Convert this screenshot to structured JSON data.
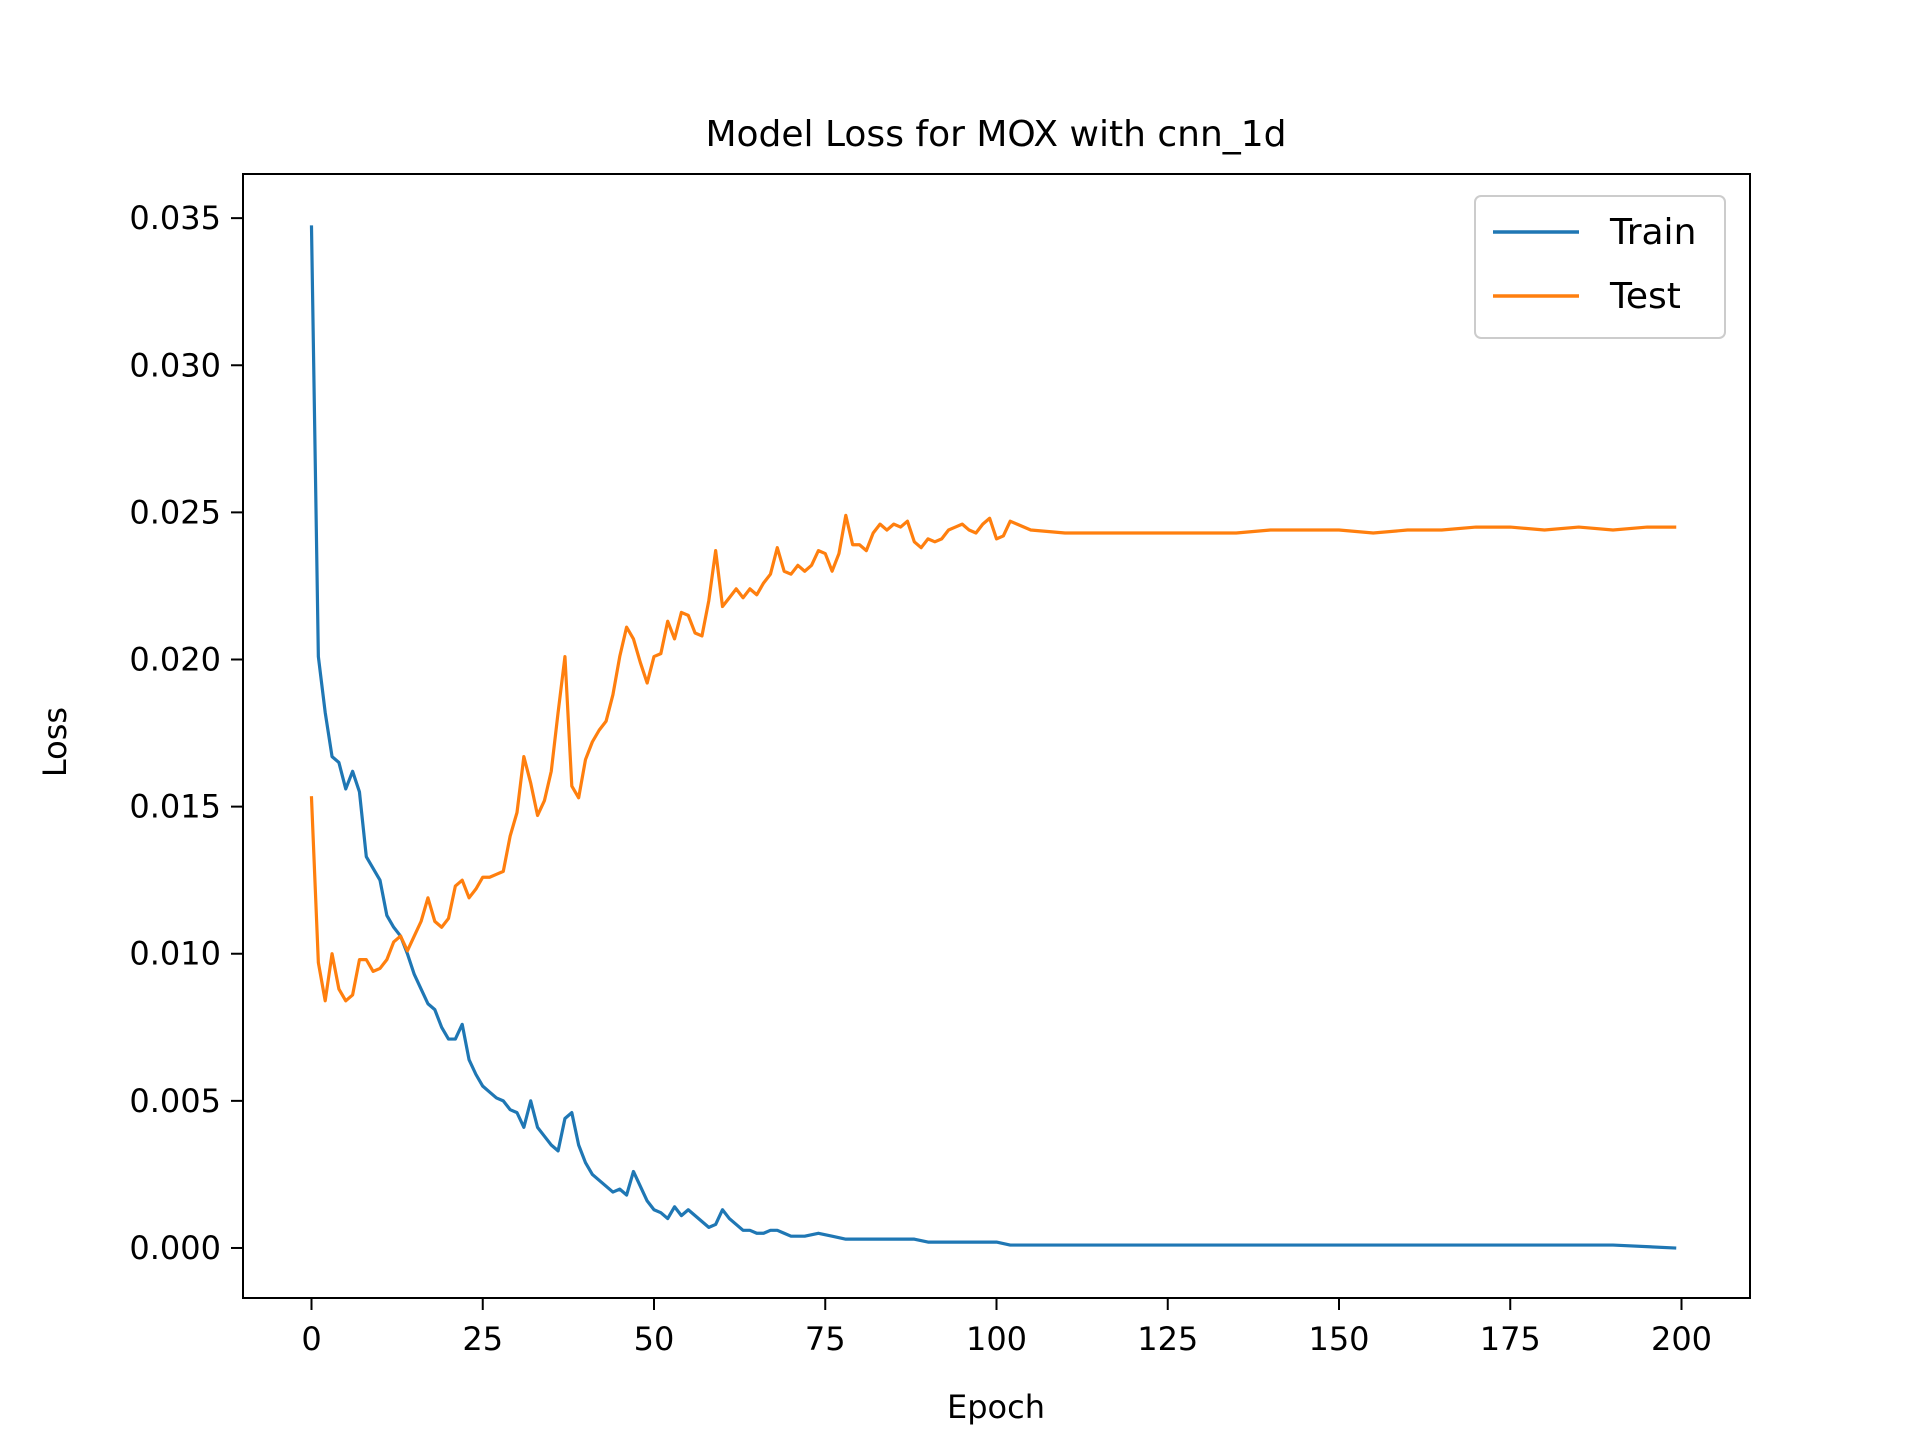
{
  "chart_data": {
    "type": "line",
    "title": "Model Loss for MOX with cnn_1d",
    "xlabel": "Epoch",
    "ylabel": "Loss",
    "xlim": [
      -10,
      210
    ],
    "ylim": [
      -0.0017,
      0.0365
    ],
    "xticks": [
      0,
      25,
      50,
      75,
      100,
      125,
      150,
      175,
      200
    ],
    "xtick_labels": [
      "0",
      "25",
      "50",
      "75",
      "100",
      "125",
      "150",
      "175",
      "200"
    ],
    "yticks": [
      0.0,
      0.005,
      0.01,
      0.015,
      0.02,
      0.025,
      0.03,
      0.035
    ],
    "ytick_labels": [
      "0.000",
      "0.005",
      "0.010",
      "0.015",
      "0.020",
      "0.025",
      "0.030",
      "0.035"
    ],
    "grid": false,
    "legend": {
      "position": "top-right",
      "entries": [
        "Train",
        "Test"
      ]
    },
    "series": [
      {
        "name": "Train",
        "color": "#1f77b4",
        "x": [
          0,
          1,
          2,
          3,
          4,
          5,
          6,
          7,
          8,
          9,
          10,
          11,
          12,
          13,
          14,
          15,
          16,
          17,
          18,
          19,
          20,
          21,
          22,
          23,
          24,
          25,
          26,
          27,
          28,
          29,
          30,
          31,
          32,
          33,
          34,
          35,
          36,
          37,
          38,
          39,
          40,
          41,
          42,
          43,
          44,
          45,
          46,
          47,
          48,
          49,
          50,
          51,
          52,
          53,
          54,
          55,
          56,
          57,
          58,
          59,
          60,
          61,
          62,
          63,
          64,
          65,
          66,
          67,
          68,
          69,
          70,
          72,
          74,
          76,
          78,
          80,
          82,
          84,
          86,
          88,
          90,
          92,
          94,
          96,
          98,
          100,
          102,
          105,
          110,
          120,
          130,
          140,
          150,
          160,
          170,
          180,
          190,
          199
        ],
        "values": [
          0.0347,
          0.0201,
          0.0182,
          0.0167,
          0.0165,
          0.0156,
          0.0162,
          0.0155,
          0.0133,
          0.0129,
          0.0125,
          0.0113,
          0.0109,
          0.0106,
          0.01,
          0.0093,
          0.0088,
          0.0083,
          0.0081,
          0.0075,
          0.0071,
          0.0071,
          0.0076,
          0.0064,
          0.0059,
          0.0055,
          0.0053,
          0.0051,
          0.005,
          0.0047,
          0.0046,
          0.0041,
          0.005,
          0.0041,
          0.0038,
          0.0035,
          0.0033,
          0.0044,
          0.0046,
          0.0035,
          0.0029,
          0.0025,
          0.0023,
          0.0021,
          0.0019,
          0.002,
          0.0018,
          0.0026,
          0.0021,
          0.0016,
          0.0013,
          0.0012,
          0.001,
          0.0014,
          0.0011,
          0.0013,
          0.0011,
          0.0009,
          0.0007,
          0.0008,
          0.0013,
          0.001,
          0.0008,
          0.0006,
          0.0006,
          0.0005,
          0.0005,
          0.0006,
          0.0006,
          0.0005,
          0.0004,
          0.0004,
          0.0005,
          0.0004,
          0.0003,
          0.0003,
          0.0003,
          0.0003,
          0.0003,
          0.0003,
          0.0002,
          0.0002,
          0.0002,
          0.0002,
          0.0002,
          0.0002,
          0.0001,
          0.0001,
          0.0001,
          0.0001,
          0.0001,
          0.0001,
          0.0001,
          0.0001,
          0.0001,
          0.0001,
          0.0001,
          0.0
        ]
      },
      {
        "name": "Test",
        "color": "#ff7f0e",
        "x": [
          0,
          1,
          2,
          3,
          4,
          5,
          6,
          7,
          8,
          9,
          10,
          11,
          12,
          13,
          14,
          15,
          16,
          17,
          18,
          19,
          20,
          21,
          22,
          23,
          24,
          25,
          26,
          27,
          28,
          29,
          30,
          31,
          32,
          33,
          34,
          35,
          36,
          37,
          38,
          39,
          40,
          41,
          42,
          43,
          44,
          45,
          46,
          47,
          48,
          49,
          50,
          51,
          52,
          53,
          54,
          55,
          56,
          57,
          58,
          59,
          60,
          61,
          62,
          63,
          64,
          65,
          66,
          67,
          68,
          69,
          70,
          71,
          72,
          73,
          74,
          75,
          76,
          77,
          78,
          79,
          80,
          81,
          82,
          83,
          84,
          85,
          86,
          87,
          88,
          89,
          90,
          91,
          92,
          93,
          94,
          95,
          96,
          97,
          98,
          99,
          100,
          101,
          102,
          103,
          105,
          110,
          120,
          125,
          130,
          135,
          140,
          145,
          150,
          155,
          160,
          165,
          170,
          175,
          180,
          185,
          190,
          195,
          199
        ],
        "values": [
          0.0153,
          0.0097,
          0.0084,
          0.01,
          0.0088,
          0.0084,
          0.0086,
          0.0098,
          0.0098,
          0.0094,
          0.0095,
          0.0098,
          0.0104,
          0.0106,
          0.0101,
          0.0106,
          0.0111,
          0.0119,
          0.0111,
          0.0109,
          0.0112,
          0.0123,
          0.0125,
          0.0119,
          0.0122,
          0.0126,
          0.0126,
          0.0127,
          0.0128,
          0.014,
          0.0148,
          0.0167,
          0.0158,
          0.0147,
          0.0152,
          0.0162,
          0.0182,
          0.0201,
          0.0157,
          0.0153,
          0.0166,
          0.0172,
          0.0176,
          0.0179,
          0.0188,
          0.0201,
          0.0211,
          0.0207,
          0.0199,
          0.0192,
          0.0201,
          0.0202,
          0.0213,
          0.0207,
          0.0216,
          0.0215,
          0.0209,
          0.0208,
          0.022,
          0.0237,
          0.0218,
          0.0221,
          0.0224,
          0.0221,
          0.0224,
          0.0222,
          0.0226,
          0.0229,
          0.0238,
          0.023,
          0.0229,
          0.0232,
          0.023,
          0.0232,
          0.0237,
          0.0236,
          0.023,
          0.0236,
          0.0249,
          0.0239,
          0.0239,
          0.0237,
          0.0243,
          0.0246,
          0.0244,
          0.0246,
          0.0245,
          0.0247,
          0.024,
          0.0238,
          0.0241,
          0.024,
          0.0241,
          0.0244,
          0.0245,
          0.0246,
          0.0244,
          0.0243,
          0.0246,
          0.0248,
          0.0241,
          0.0242,
          0.0247,
          0.0246,
          0.0244,
          0.0243,
          0.0243,
          0.0243,
          0.0243,
          0.0243,
          0.0244,
          0.0244,
          0.0244,
          0.0243,
          0.0244,
          0.0244,
          0.0245,
          0.0245,
          0.0244,
          0.0245,
          0.0244,
          0.0245,
          0.0245
        ]
      }
    ]
  }
}
